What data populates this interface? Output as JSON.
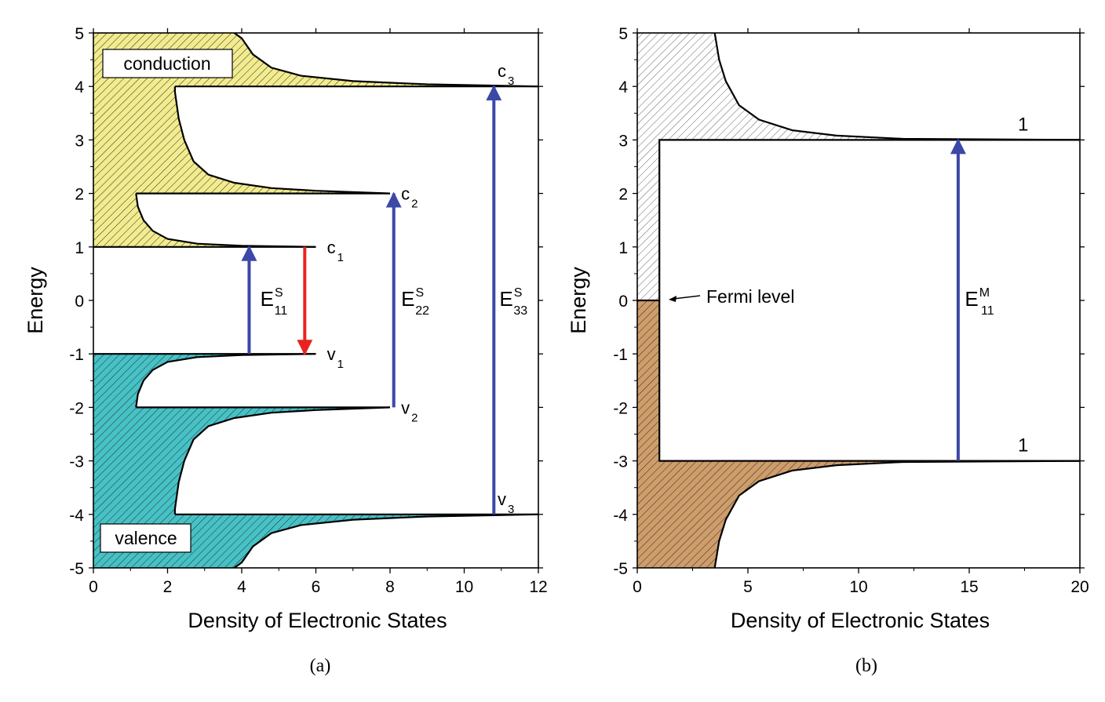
{
  "colors": {
    "conduction_fill": "#f2ec8e",
    "valence_fill": "#46c2c6",
    "metal_conduction_fill": "#ffffff",
    "metal_valence_fill": "#cf9d6a",
    "arrow_blue": "#3b48a8",
    "arrow_red": "#e8231f"
  },
  "chart_data": [
    {
      "type": "line",
      "panel_label": "(a)",
      "xlabel": "Density of Electronic States",
      "ylabel": "Energy",
      "xlim": [
        0,
        12
      ],
      "ylim": [
        -5,
        5
      ],
      "x_ticks": [
        "0",
        "2",
        "4",
        "6",
        "8",
        "10",
        "12"
      ],
      "y_ticks": [
        "5",
        "4",
        "3",
        "2",
        "1",
        "0",
        "-1",
        "-2",
        "-3",
        "-4",
        "-5"
      ],
      "series": [
        {
          "x": [
            4.0,
            3.0,
            2.5,
            2.2
          ],
          "y": [
            5.0,
            4.5,
            4.2,
            4.0
          ]
        },
        {
          "x": [
            2.2,
            2.5,
            3.5,
            6.0
          ],
          "y": [
            4.0,
            3.0,
            2.4,
            2.0
          ]
        },
        {
          "x": [
            1.2,
            1.5,
            2.5,
            6.0
          ],
          "y": [
            2.0,
            1.5,
            1.1,
            1.0
          ]
        }
      ],
      "levels": [
        {
          "label": "c",
          "sub": "1",
          "energy": 1
        },
        {
          "label": "c",
          "sub": "2",
          "energy": 2
        },
        {
          "label": "c",
          "sub": "3",
          "energy": 4
        },
        {
          "label": "v",
          "sub": "1",
          "energy": -1
        },
        {
          "label": "v",
          "sub": "2",
          "energy": -2
        },
        {
          "label": "v",
          "sub": "3",
          "energy": -4
        }
      ],
      "region_labels": {
        "upper": "conduction",
        "lower": "valence"
      },
      "transitions": [
        {
          "label": "E",
          "sup": "S",
          "sub": "11",
          "x": 4.2,
          "from": -1,
          "to": 1,
          "color": "blue"
        },
        {
          "label": "E",
          "sup": "S",
          "sub": "22",
          "x": 8.1,
          "from": -2,
          "to": 2,
          "color": "blue"
        },
        {
          "label": "E",
          "sup": "S",
          "sub": "33",
          "x": 10.8,
          "from": -4,
          "to": 4,
          "color": "blue"
        },
        {
          "x": 5.7,
          "from": 1,
          "to": -1,
          "color": "red"
        }
      ]
    },
    {
      "type": "line",
      "panel_label": "(b)",
      "xlabel": "Density of Electronic States",
      "ylabel": "Energy",
      "xlim": [
        0,
        20
      ],
      "ylim": [
        -5,
        5
      ],
      "x_ticks": [
        "0",
        "5",
        "10",
        "15",
        "20"
      ],
      "y_ticks": [
        "5",
        "4",
        "3",
        "2",
        "1",
        "0",
        "-1",
        "-2",
        "-3",
        "-4",
        "-5"
      ],
      "series": [
        {
          "x": [
            3.5,
            4.2,
            5.5,
            8.0,
            12.0,
            20.0
          ],
          "y": [
            5.0,
            4.0,
            3.5,
            3.2,
            3.05,
            3.0
          ]
        },
        {
          "x": [
            3.5,
            4.2,
            5.5,
            8.0,
            12.0,
            20.0
          ],
          "y": [
            -5.0,
            -4.0,
            -3.5,
            -3.2,
            -3.05,
            -3.0
          ]
        },
        {
          "x": [
            0,
            1,
            1,
            20
          ],
          "y": [
            0,
            0,
            3,
            3
          ]
        },
        {
          "x": [
            1,
            20
          ],
          "y": [
            -3,
            -3
          ]
        }
      ],
      "levels": [
        {
          "label": "1",
          "energy": 3
        },
        {
          "label": "1",
          "energy": -3
        }
      ],
      "annotation": {
        "text": "Fermi level",
        "energy": 0
      },
      "transitions": [
        {
          "label": "E",
          "sup": "M",
          "sub": "11",
          "x": 14.5,
          "from": -3,
          "to": 3,
          "color": "blue"
        }
      ]
    }
  ]
}
